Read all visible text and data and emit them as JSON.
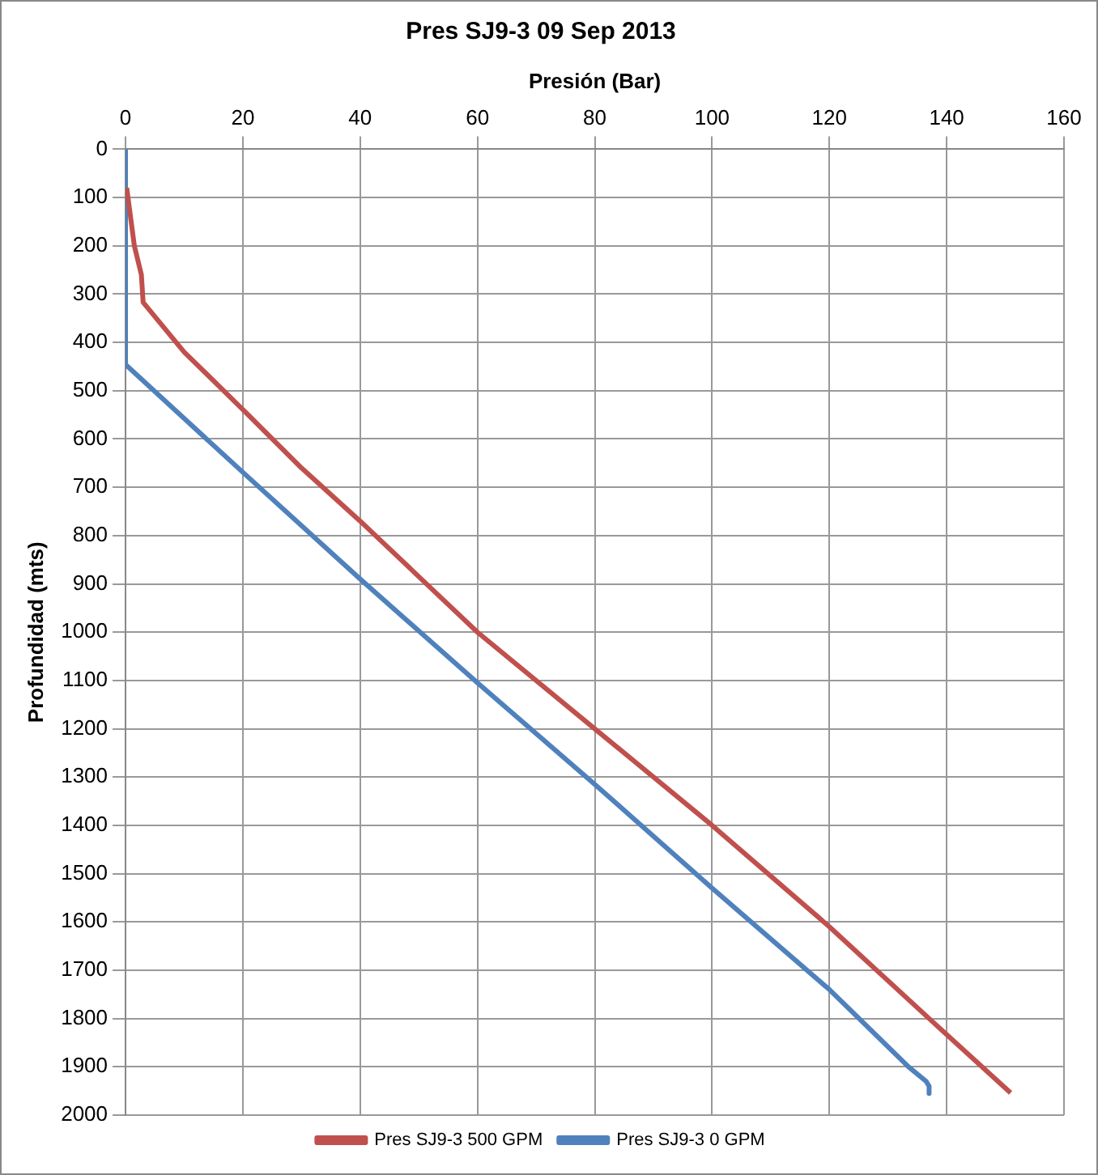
{
  "chart_data": {
    "type": "line",
    "title": "Pres SJ9-3 09 Sep 2013",
    "xlabel": "Presión (Bar)",
    "ylabel": "Profundidad (mts)",
    "xlim": [
      0,
      160
    ],
    "xticks": [
      0,
      20,
      40,
      60,
      80,
      100,
      120,
      140,
      160
    ],
    "ylim": [
      2000,
      0
    ],
    "yticks": [
      0,
      100,
      200,
      300,
      400,
      500,
      600,
      700,
      800,
      900,
      1000,
      1100,
      1200,
      1300,
      1400,
      1500,
      1600,
      1700,
      1800,
      1900,
      2000
    ],
    "grid": true,
    "legend": "bottom",
    "marker": "none",
    "line_style": "solid",
    "series": [
      {
        "name": "Pres SJ9-3 500 GPM",
        "color": "#c0504d",
        "x": [
          0.2,
          1.5,
          2.7,
          3,
          10,
          20,
          30,
          40,
          50,
          60,
          80,
          100,
          120,
          137,
          150.9
        ],
        "values": [
          80,
          200,
          260,
          317,
          420,
          539,
          660,
          770,
          885,
          1000,
          1200,
          1400,
          1610,
          1800,
          1954
        ]
      },
      {
        "name": "Pres SJ9-3 0 GPM",
        "color": "#4f81bd",
        "x": [
          0,
          0,
          20,
          40,
          60,
          80,
          100,
          120,
          133.5,
          136.5,
          137,
          137
        ],
        "values": [
          0,
          446,
          669,
          890,
          1105,
          1315,
          1530,
          1740,
          1900,
          1930,
          1940,
          1955
        ]
      }
    ]
  }
}
